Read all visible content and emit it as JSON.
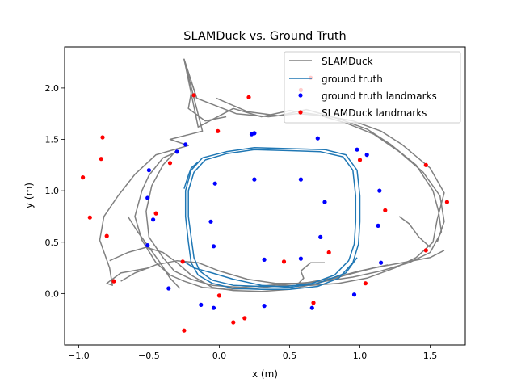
{
  "chart_data": {
    "type": "scatter",
    "title": "SLAMDuck vs. Ground Truth",
    "xlabel": "x (m)",
    "ylabel": "y (m)",
    "xlim": [
      -1.1,
      1.75
    ],
    "ylim": [
      -0.5,
      2.4
    ],
    "xticks": [
      -1.0,
      -0.5,
      0.0,
      0.5,
      1.0,
      1.5
    ],
    "xtick_labels": [
      "−1.0",
      "−0.5",
      "0.0",
      "0.5",
      "1.0",
      "1.5"
    ],
    "yticks": [
      0.0,
      0.5,
      1.0,
      1.5,
      2.0
    ],
    "ytick_labels": [
      "0.0",
      "0.5",
      "1.0",
      "1.5",
      "2.0"
    ],
    "grid": false,
    "legend_position": "upper right",
    "series": [
      {
        "name": "SLAMDuck",
        "kind": "line",
        "color": "#808080",
        "paths": [
          [
            [
              -0.16,
              1.9
            ],
            [
              -0.25,
              2.28
            ],
            [
              -0.12,
              1.58
            ],
            [
              -0.35,
              1.5
            ],
            [
              -0.22,
              1.44
            ],
            [
              -0.45,
              1.35
            ],
            [
              -0.6,
              1.16
            ],
            [
              -0.72,
              0.95
            ],
            [
              -0.82,
              0.75
            ],
            [
              -0.85,
              0.52
            ],
            [
              -0.78,
              0.25
            ],
            [
              -0.76,
              0.08
            ],
            [
              -0.8,
              0.1
            ],
            [
              -0.7,
              0.2
            ],
            [
              -0.5,
              0.25
            ]
          ],
          [
            [
              -0.16,
              1.9
            ],
            [
              0.12,
              1.75
            ],
            [
              0.35,
              1.72
            ],
            [
              0.55,
              1.75
            ],
            [
              0.75,
              1.73
            ],
            [
              0.95,
              1.68
            ],
            [
              1.15,
              1.58
            ],
            [
              1.3,
              1.45
            ],
            [
              1.5,
              1.22
            ],
            [
              1.6,
              0.98
            ],
            [
              1.55,
              0.72
            ],
            [
              1.52,
              0.5
            ],
            [
              1.4,
              0.35
            ],
            [
              1.25,
              0.25
            ],
            [
              1.05,
              0.15
            ],
            [
              0.85,
              0.1
            ],
            [
              0.65,
              0.08
            ],
            [
              0.45,
              0.08
            ],
            [
              0.25,
              0.05
            ],
            [
              0.05,
              0.04
            ],
            [
              -0.12,
              0.06
            ],
            [
              -0.25,
              0.12
            ],
            [
              -0.35,
              0.18
            ],
            [
              -0.45,
              0.3
            ],
            [
              -0.55,
              0.52
            ],
            [
              -0.6,
              0.75
            ],
            [
              -0.55,
              1.0
            ],
            [
              -0.5,
              1.15
            ],
            [
              -0.4,
              1.32
            ],
            [
              -0.3,
              1.38
            ]
          ],
          [
            [
              -0.16,
              1.9
            ],
            [
              -0.25,
              2.28
            ],
            [
              -0.15,
              1.62
            ],
            [
              0.1,
              1.8
            ],
            [
              0.3,
              1.72
            ],
            [
              0.5,
              1.78
            ],
            [
              0.7,
              1.74
            ],
            [
              0.9,
              1.66
            ],
            [
              1.1,
              1.55
            ],
            [
              1.28,
              1.38
            ],
            [
              1.45,
              1.18
            ],
            [
              1.57,
              0.95
            ],
            [
              1.6,
              0.7
            ],
            [
              1.55,
              0.5
            ]
          ],
          [
            [
              -0.02,
              1.9
            ],
            [
              0.2,
              1.77
            ],
            [
              0.42,
              1.73
            ],
            [
              0.62,
              1.79
            ],
            [
              0.85,
              1.7
            ],
            [
              1.05,
              1.6
            ],
            [
              1.22,
              1.45
            ],
            [
              1.4,
              1.25
            ],
            [
              1.52,
              1.0
            ],
            [
              1.56,
              0.8
            ],
            [
              1.58,
              0.6
            ],
            [
              1.5,
              0.4
            ],
            [
              1.35,
              0.3
            ],
            [
              1.15,
              0.22
            ],
            [
              0.95,
              0.16
            ],
            [
              0.75,
              0.12
            ],
            [
              0.55,
              0.1
            ],
            [
              0.35,
              0.08
            ],
            [
              0.15,
              0.06
            ],
            [
              -0.05,
              0.08
            ],
            [
              -0.2,
              0.14
            ],
            [
              -0.32,
              0.22
            ],
            [
              -0.4,
              0.35
            ],
            [
              -0.5,
              0.55
            ],
            [
              -0.52,
              0.8
            ],
            [
              -0.48,
              1.05
            ],
            [
              -0.4,
              1.25
            ],
            [
              -0.3,
              1.4
            ]
          ],
          [
            [
              -0.78,
              0.32
            ],
            [
              -0.65,
              0.4
            ],
            [
              -0.52,
              0.45
            ],
            [
              -0.4,
              0.4
            ],
            [
              -0.3,
              0.3
            ],
            [
              -0.2,
              0.18
            ],
            [
              -0.05,
              0.06
            ],
            [
              0.1,
              0.03
            ],
            [
              0.3,
              0.02
            ],
            [
              0.5,
              0.04
            ],
            [
              0.7,
              0.1
            ],
            [
              0.9,
              0.18
            ],
            [
              1.1,
              0.25
            ],
            [
              1.3,
              0.3
            ],
            [
              1.5,
              0.35
            ],
            [
              1.6,
              0.42
            ]
          ],
          [
            [
              -0.7,
              0.12
            ],
            [
              -0.6,
              0.2
            ],
            [
              -0.45,
              0.28
            ],
            [
              -0.3,
              0.32
            ],
            [
              -0.15,
              0.3
            ],
            [
              0.0,
              0.22
            ],
            [
              0.2,
              0.14
            ],
            [
              0.4,
              0.1
            ],
            [
              0.6,
              0.1
            ],
            [
              0.8,
              0.15
            ],
            [
              1.0,
              0.22
            ],
            [
              1.2,
              0.28
            ]
          ],
          [
            [
              -0.65,
              0.75
            ],
            [
              -0.58,
              0.6
            ],
            [
              -0.5,
              0.45
            ],
            [
              -0.42,
              0.3
            ],
            [
              -0.35,
              0.15
            ],
            [
              -0.28,
              0.05
            ]
          ],
          [
            [
              0.55,
              0.08
            ],
            [
              0.6,
              0.15
            ],
            [
              0.58,
              0.22
            ],
            [
              0.65,
              0.3
            ],
            [
              0.75,
              0.3
            ]
          ],
          [
            [
              -0.2,
              1.95
            ],
            [
              -0.22,
              1.8
            ],
            [
              -0.1,
              1.68
            ],
            [
              0.05,
              1.72
            ]
          ],
          [
            [
              1.28,
              0.75
            ],
            [
              1.35,
              0.68
            ],
            [
              1.42,
              0.55
            ],
            [
              1.5,
              0.45
            ]
          ]
        ]
      },
      {
        "name": "ground truth",
        "kind": "line",
        "color": "#1f77b4",
        "paths": [
          [
            [
              -0.12,
              1.32
            ],
            [
              0.05,
              1.38
            ],
            [
              0.25,
              1.42
            ],
            [
              0.5,
              1.41
            ],
            [
              0.75,
              1.4
            ],
            [
              0.9,
              1.35
            ],
            [
              0.98,
              1.2
            ],
            [
              1.0,
              0.95
            ],
            [
              1.0,
              0.7
            ],
            [
              0.99,
              0.48
            ],
            [
              0.95,
              0.3
            ],
            [
              0.85,
              0.15
            ],
            [
              0.7,
              0.07
            ],
            [
              0.5,
              0.04
            ],
            [
              0.3,
              0.04
            ],
            [
              0.1,
              0.05
            ],
            [
              -0.05,
              0.1
            ],
            [
              -0.15,
              0.18
            ],
            [
              -0.2,
              0.3
            ],
            [
              -0.22,
              0.5
            ],
            [
              -0.24,
              0.75
            ],
            [
              -0.24,
              1.0
            ],
            [
              -0.2,
              1.2
            ],
            [
              -0.12,
              1.32
            ]
          ],
          [
            [
              -0.1,
              1.3
            ],
            [
              0.05,
              1.36
            ],
            [
              0.25,
              1.4
            ],
            [
              0.5,
              1.39
            ],
            [
              0.72,
              1.38
            ],
            [
              0.88,
              1.33
            ],
            [
              0.95,
              1.2
            ],
            [
              0.97,
              0.95
            ],
            [
              0.97,
              0.7
            ],
            [
              0.96,
              0.48
            ],
            [
              0.92,
              0.32
            ],
            [
              0.82,
              0.18
            ],
            [
              0.66,
              0.1
            ],
            [
              0.48,
              0.07
            ],
            [
              0.28,
              0.07
            ],
            [
              0.1,
              0.08
            ],
            [
              -0.05,
              0.13
            ],
            [
              -0.14,
              0.22
            ],
            [
              -0.18,
              0.35
            ],
            [
              -0.2,
              0.55
            ],
            [
              -0.22,
              0.75
            ],
            [
              -0.22,
              1.0
            ],
            [
              -0.18,
              1.18
            ],
            [
              -0.1,
              1.3
            ]
          ],
          [
            [
              -0.26,
              0.32
            ],
            [
              -0.18,
              0.25
            ],
            [
              -0.05,
              0.2
            ],
            [
              0.1,
              0.14
            ],
            [
              0.3,
              0.08
            ],
            [
              0.5,
              0.06
            ],
            [
              0.7,
              0.1
            ],
            [
              0.9,
              0.2
            ],
            [
              0.98,
              0.35
            ]
          ],
          [
            [
              -0.25,
              1.02
            ],
            [
              -0.22,
              1.15
            ],
            [
              -0.2,
              1.22
            ],
            [
              -0.15,
              1.28
            ]
          ]
        ]
      },
      {
        "name": "ground truth landmarks",
        "kind": "marker",
        "color": "#0000ff",
        "points": [
          [
            -0.24,
            1.45
          ],
          [
            -0.3,
            1.38
          ],
          [
            0.23,
            1.55
          ],
          [
            0.25,
            1.56
          ],
          [
            0.7,
            1.51
          ],
          [
            0.98,
            1.4
          ],
          [
            1.05,
            1.35
          ],
          [
            -0.5,
            1.2
          ],
          [
            -0.03,
            1.07
          ],
          [
            0.25,
            1.11
          ],
          [
            0.58,
            1.11
          ],
          [
            1.14,
            1.0
          ],
          [
            -0.51,
            0.93
          ],
          [
            0.75,
            0.89
          ],
          [
            -0.47,
            0.72
          ],
          [
            -0.06,
            0.7
          ],
          [
            1.13,
            0.66
          ],
          [
            0.72,
            0.55
          ],
          [
            -0.51,
            0.47
          ],
          [
            -0.04,
            0.46
          ],
          [
            0.32,
            0.33
          ],
          [
            0.58,
            0.34
          ],
          [
            1.15,
            0.3
          ],
          [
            -0.36,
            0.05
          ],
          [
            0.96,
            -0.01
          ],
          [
            -0.13,
            -0.11
          ],
          [
            0.32,
            -0.12
          ],
          [
            -0.04,
            -0.14
          ],
          [
            0.66,
            -0.14
          ]
        ]
      },
      {
        "name": "SLAMDuck landmarks",
        "kind": "marker",
        "color": "#ff0000",
        "points": [
          [
            -0.18,
            1.93
          ],
          [
            0.21,
            1.91
          ],
          [
            0.58,
            1.98
          ],
          [
            0.65,
            2.1
          ],
          [
            -0.83,
            1.52
          ],
          [
            -0.84,
            1.31
          ],
          [
            -0.01,
            1.58
          ],
          [
            -0.35,
            1.27
          ],
          [
            1.0,
            1.3
          ],
          [
            1.47,
            1.25
          ],
          [
            -0.97,
            1.13
          ],
          [
            1.62,
            0.89
          ],
          [
            -0.45,
            0.78
          ],
          [
            1.18,
            0.81
          ],
          [
            -0.92,
            0.74
          ],
          [
            -0.8,
            0.56
          ],
          [
            1.47,
            0.42
          ],
          [
            0.78,
            0.4
          ],
          [
            0.46,
            0.31
          ],
          [
            -0.26,
            0.31
          ],
          [
            -0.75,
            0.12
          ],
          [
            1.04,
            0.1
          ],
          [
            0.0,
            -0.02
          ],
          [
            0.67,
            -0.09
          ],
          [
            0.18,
            -0.24
          ],
          [
            0.1,
            -0.28
          ],
          [
            -0.25,
            -0.36
          ]
        ]
      }
    ]
  }
}
